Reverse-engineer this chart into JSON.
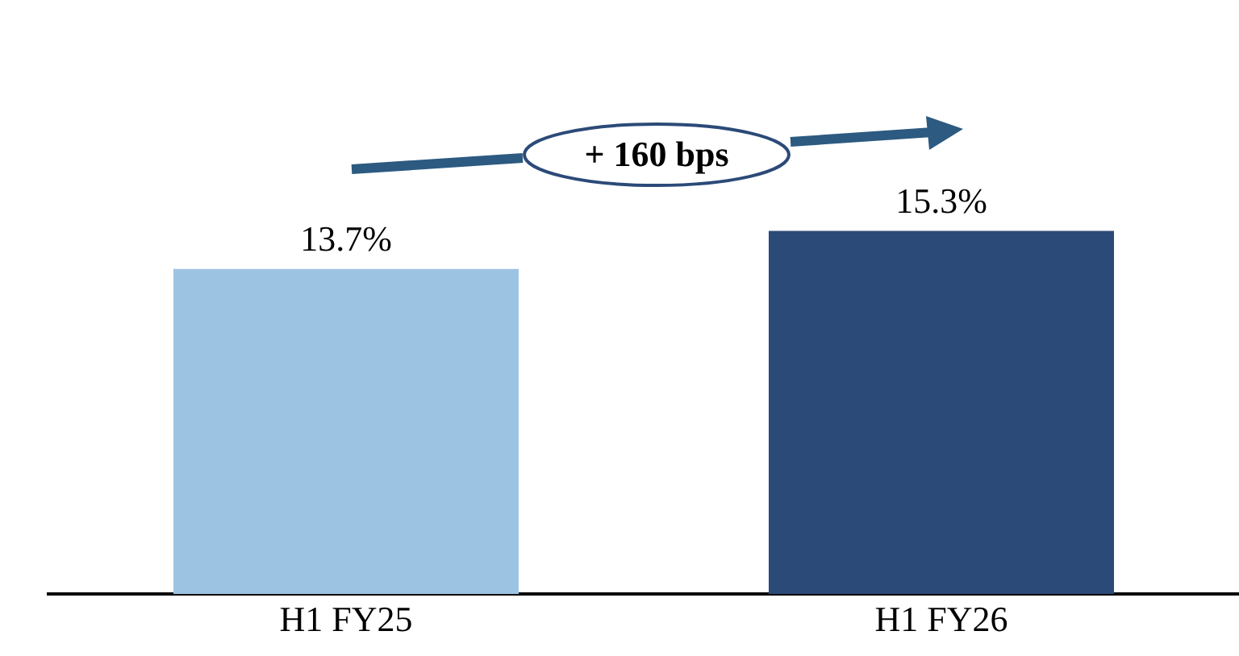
{
  "chart_data": {
    "type": "bar",
    "categories": [
      "H1 FY25",
      "H1 FY26"
    ],
    "values": [
      13.7,
      15.3
    ],
    "colors": [
      "#9dc3e3",
      "#2c4a78"
    ],
    "value_labels": [
      "13.7%",
      "15.3%"
    ],
    "tick_labels": "x",
    "grid": false,
    "legend": false,
    "annotations": [
      "+ 160 bps"
    ]
  }
}
